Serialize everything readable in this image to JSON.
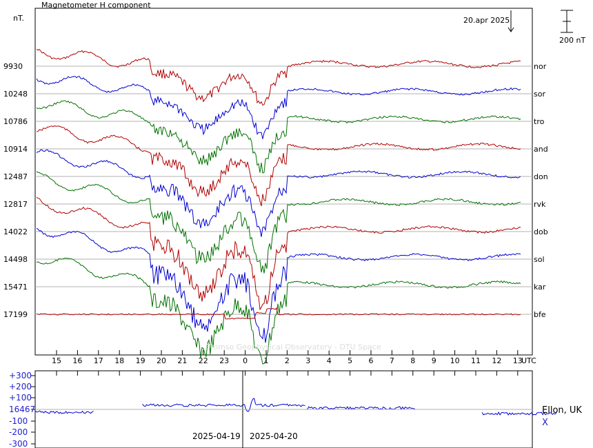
{
  "header": {
    "title": "Magnetometer H component",
    "unit": "nT.",
    "date_marker": "20.apr 2025",
    "scale_label": "200 nT"
  },
  "watermark": "Tromso Geophysical Observatory - DTU Space",
  "colors": {
    "red": "#b00000",
    "blue": "#0000d0",
    "green": "#007000",
    "grid": "#b0b0b0",
    "axis": "#000000",
    "inset_label": "#2020d0"
  },
  "chart_data": [
    {
      "type": "line",
      "title": "Magnetometer H component",
      "xlabel": "UTC",
      "x_ticks": [
        "15",
        "16",
        "17",
        "18",
        "19",
        "20",
        "21",
        "22",
        "23",
        "0",
        "1",
        "2",
        "3",
        "4",
        "5",
        "6",
        "7",
        "8",
        "9",
        "10",
        "11",
        "12",
        "13"
      ],
      "x_unit": "UTC",
      "grid": true,
      "series": [
        {
          "name": "nor",
          "baseline": "9930",
          "color": "red"
        },
        {
          "name": "sor",
          "baseline": "10248",
          "color": "blue"
        },
        {
          "name": "tro",
          "baseline": "10786",
          "color": "green"
        },
        {
          "name": "and",
          "baseline": "10914",
          "color": "red"
        },
        {
          "name": "don",
          "baseline": "12487",
          "color": "blue"
        },
        {
          "name": "rvk",
          "baseline": "12817",
          "color": "green"
        },
        {
          "name": "dob",
          "baseline": "14022",
          "color": "red"
        },
        {
          "name": "sol",
          "baseline": "14498",
          "color": "blue"
        },
        {
          "name": "kar",
          "baseline": "15471",
          "color": "green"
        },
        {
          "name": "bfe",
          "baseline": "17199",
          "color": "red"
        }
      ]
    },
    {
      "type": "line",
      "station": "Ellon, UK",
      "component": "X",
      "y_ticks": [
        "+300",
        "+200",
        "+100",
        "16467",
        "-100",
        "-200",
        "-300"
      ],
      "date_left": "2025-04-19",
      "date_right": "2025-04-20",
      "series": [
        {
          "name": "X",
          "color": "blue"
        }
      ]
    }
  ]
}
